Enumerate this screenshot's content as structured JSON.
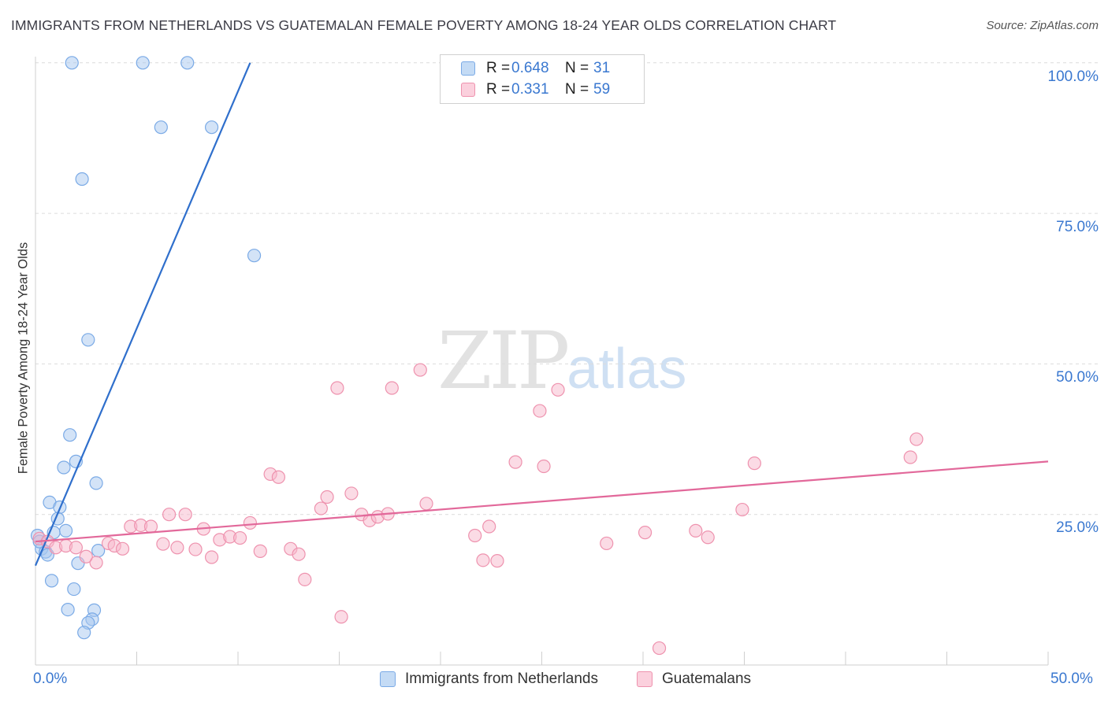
{
  "header": {
    "title": "IMMIGRANTS FROM NETHERLANDS VS GUATEMALAN FEMALE POVERTY AMONG 18-24 YEAR OLDS CORRELATION CHART",
    "source": "Source: ZipAtlas.com"
  },
  "watermark": {
    "zip": "ZIP",
    "atlas": "atlas"
  },
  "legend_top": {
    "rows": [
      {
        "r_label": "R =",
        "r_value": "0.648",
        "n_label": "N =",
        "n_value": "31",
        "color": "#a8c8f0"
      },
      {
        "r_label": "R =",
        "r_value": "0.331",
        "n_label": "N =",
        "n_value": "59",
        "color": "#f8b8cc"
      }
    ]
  },
  "legend_bottom": {
    "items": [
      {
        "label": "Immigrants from Netherlands",
        "color": "#a8c8f0"
      },
      {
        "label": "Guatemalans",
        "color": "#f8b8cc"
      }
    ]
  },
  "chart_data": {
    "type": "scatter",
    "title": "IMMIGRANTS FROM NETHERLANDS VS GUATEMALAN FEMALE POVERTY AMONG 18-24 YEAR OLDS CORRELATION CHART",
    "xlabel": "",
    "ylabel": "Female Poverty Among 18-24 Year Olds",
    "xlim": [
      0,
      50
    ],
    "ylim": [
      0,
      102
    ],
    "x_tick_labels": [
      "0.0%",
      "50.0%"
    ],
    "y_ticks": [
      25,
      50,
      75,
      100
    ],
    "y_tick_labels": [
      "25.0%",
      "50.0%",
      "75.0%",
      "100.0%"
    ],
    "grid": true,
    "series": [
      {
        "name": "Immigrants from Netherlands",
        "color": "#a8c8f0",
        "edge": "#7aaae6",
        "line_color": "#2f6fcc",
        "trend": {
          "x": [
            0.0,
            10.6
          ],
          "y": [
            16.5,
            100.0
          ]
        },
        "points": [
          [
            1.8,
            100.0
          ],
          [
            5.3,
            100.0
          ],
          [
            7.5,
            100.0
          ],
          [
            6.2,
            89.3
          ],
          [
            8.7,
            89.3
          ],
          [
            2.3,
            80.7
          ],
          [
            10.8,
            68.0
          ],
          [
            2.6,
            54.0
          ],
          [
            1.7,
            38.2
          ],
          [
            2.0,
            33.8
          ],
          [
            1.4,
            32.8
          ],
          [
            3.0,
            30.2
          ],
          [
            0.7,
            27.0
          ],
          [
            1.2,
            26.2
          ],
          [
            1.1,
            24.3
          ],
          [
            1.5,
            22.3
          ],
          [
            0.9,
            22.0
          ],
          [
            0.3,
            19.3
          ],
          [
            0.5,
            18.8
          ],
          [
            0.6,
            18.3
          ],
          [
            3.1,
            19.0
          ],
          [
            2.1,
            16.9
          ],
          [
            0.8,
            14.0
          ],
          [
            1.9,
            12.6
          ],
          [
            1.6,
            9.2
          ],
          [
            2.9,
            9.1
          ],
          [
            2.8,
            7.6
          ],
          [
            2.6,
            7.0
          ],
          [
            2.4,
            5.4
          ],
          [
            0.1,
            21.5
          ],
          [
            0.2,
            20.5
          ]
        ]
      },
      {
        "name": "Guatemalans",
        "color": "#f8b8cc",
        "edge": "#ee92ae",
        "line_color": "#e2689a",
        "trend": {
          "x": [
            0.0,
            50.0
          ],
          "y": [
            20.5,
            33.8
          ]
        },
        "points": [
          [
            0.2,
            21.0
          ],
          [
            0.6,
            20.5
          ],
          [
            1.0,
            19.5
          ],
          [
            1.5,
            19.8
          ],
          [
            2.0,
            19.5
          ],
          [
            3.0,
            17.0
          ],
          [
            2.5,
            18.0
          ],
          [
            3.6,
            20.2
          ],
          [
            3.9,
            19.8
          ],
          [
            4.3,
            19.3
          ],
          [
            4.7,
            23.0
          ],
          [
            5.2,
            23.2
          ],
          [
            5.7,
            23.0
          ],
          [
            6.3,
            20.1
          ],
          [
            6.6,
            25.0
          ],
          [
            7.0,
            19.5
          ],
          [
            7.4,
            25.0
          ],
          [
            7.9,
            19.2
          ],
          [
            8.3,
            22.6
          ],
          [
            8.7,
            17.9
          ],
          [
            9.1,
            20.8
          ],
          [
            9.6,
            21.3
          ],
          [
            10.1,
            21.1
          ],
          [
            10.6,
            23.6
          ],
          [
            11.1,
            18.9
          ],
          [
            11.6,
            31.7
          ],
          [
            12.0,
            31.2
          ],
          [
            12.6,
            19.3
          ],
          [
            13.0,
            18.4
          ],
          [
            13.3,
            14.2
          ],
          [
            14.1,
            26.0
          ],
          [
            14.4,
            27.9
          ],
          [
            14.9,
            46.0
          ],
          [
            15.1,
            8.0
          ],
          [
            15.6,
            28.5
          ],
          [
            16.1,
            25.0
          ],
          [
            16.5,
            24.0
          ],
          [
            16.9,
            24.6
          ],
          [
            17.4,
            25.1
          ],
          [
            17.6,
            46.0
          ],
          [
            19.0,
            49.0
          ],
          [
            19.3,
            26.8
          ],
          [
            21.7,
            21.5
          ],
          [
            22.1,
            17.4
          ],
          [
            22.4,
            23.0
          ],
          [
            22.8,
            17.3
          ],
          [
            23.7,
            33.7
          ],
          [
            24.9,
            42.2
          ],
          [
            25.1,
            33.0
          ],
          [
            25.8,
            45.7
          ],
          [
            28.2,
            20.2
          ],
          [
            30.1,
            22.0
          ],
          [
            30.8,
            2.8
          ],
          [
            32.6,
            22.3
          ],
          [
            33.2,
            21.2
          ],
          [
            34.9,
            25.8
          ],
          [
            35.5,
            33.5
          ],
          [
            43.2,
            34.5
          ],
          [
            43.5,
            37.5
          ]
        ]
      }
    ]
  }
}
